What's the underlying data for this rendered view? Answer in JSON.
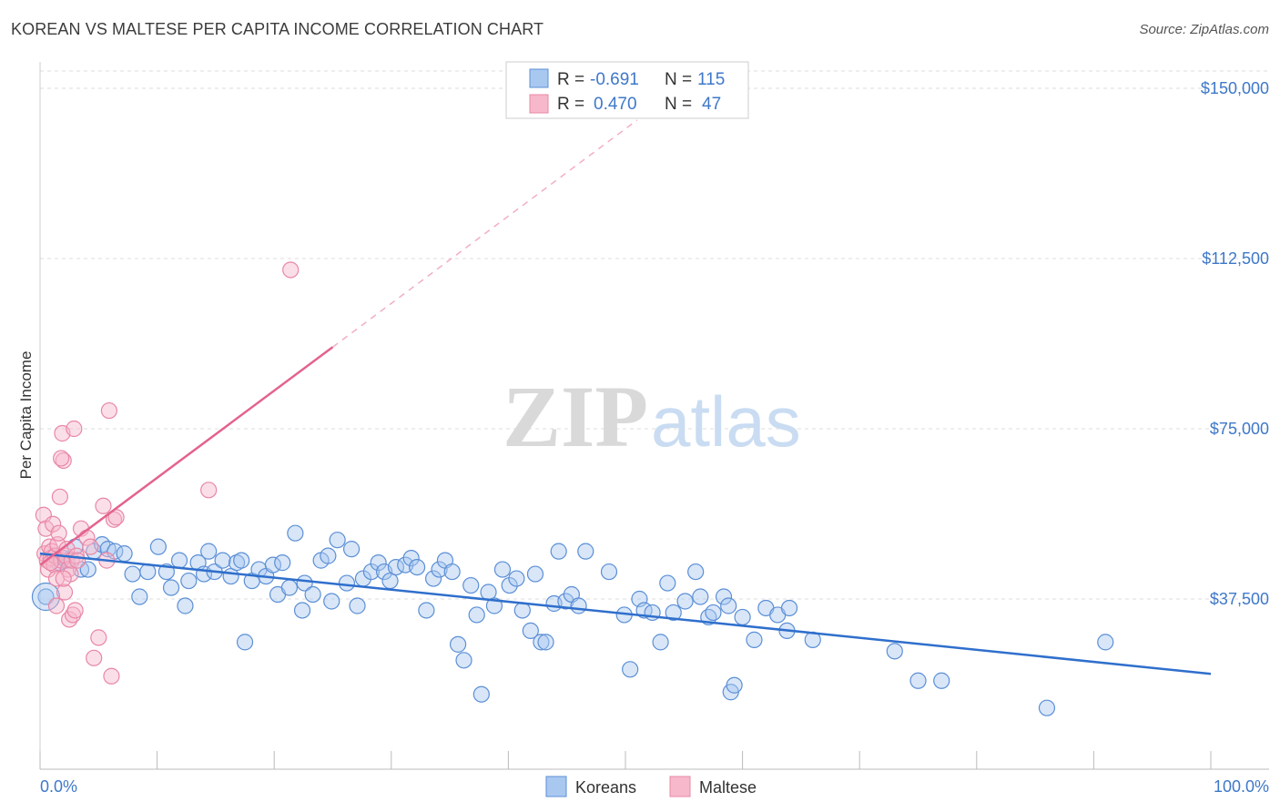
{
  "header": {
    "title": "KOREAN VS MALTESE PER CAPITA INCOME CORRELATION CHART",
    "source": "Source: ZipAtlas.com"
  },
  "watermark": {
    "zip": "ZIP",
    "atlas": "atlas"
  },
  "colors": {
    "blue_fill": "#a9c8f0",
    "blue_stroke": "#5b8fd6",
    "blue_line": "#2f6fcc",
    "pink_fill": "#f7b8cb",
    "pink_stroke": "#e987a6",
    "pink_line": "#e4628e",
    "tick_text": "#3e78c9",
    "grid": "#dddddd"
  },
  "legend": {
    "r_label": "R =",
    "n_label": "N =",
    "rows": [
      {
        "r": "-0.691",
        "n": "115"
      },
      {
        "r": "0.470",
        "n": "47"
      }
    ]
  },
  "chart_data": {
    "type": "scatter",
    "title": "KOREAN VS MALTESE PER CAPITA INCOME CORRELATION CHART",
    "xlabel": "",
    "ylabel": "Per Capita Income",
    "xlim": [
      0,
      100
    ],
    "ylim": [
      0,
      155000
    ],
    "x_tick_labels": [
      "0.0%",
      "100.0%"
    ],
    "y_ticks": [
      37500,
      75000,
      112500,
      150000
    ],
    "y_tick_labels": [
      "$37,500",
      "$75,000",
      "$112,500",
      "$150,000"
    ],
    "grid": true,
    "legend_position": "top-center",
    "series": [
      {
        "name": "Koreans",
        "color": "#a9c8f0",
        "r": -0.691,
        "n": 115,
        "trend": {
          "x": [
            0,
            100
          ],
          "y": [
            47500,
            21000
          ],
          "style": "solid"
        },
        "points": [
          [
            0.5,
            38000
          ],
          [
            1.2,
            47000
          ],
          [
            1.6,
            45500
          ],
          [
            2.0,
            46500
          ],
          [
            2.3,
            46000
          ],
          [
            3.0,
            49000
          ],
          [
            3.5,
            44000
          ],
          [
            4.1,
            44000
          ],
          [
            4.6,
            48000
          ],
          [
            5.3,
            49500
          ],
          [
            5.8,
            48500
          ],
          [
            6.4,
            48000
          ],
          [
            7.2,
            47500
          ],
          [
            7.9,
            43000
          ],
          [
            8.5,
            38000
          ],
          [
            9.2,
            43500
          ],
          [
            10.1,
            49000
          ],
          [
            10.8,
            43500
          ],
          [
            11.2,
            40000
          ],
          [
            11.9,
            46000
          ],
          [
            12.4,
            36000
          ],
          [
            12.7,
            41500
          ],
          [
            13.5,
            45500
          ],
          [
            14.0,
            43000
          ],
          [
            14.4,
            48000
          ],
          [
            14.9,
            43500
          ],
          [
            15.6,
            46000
          ],
          [
            16.3,
            42500
          ],
          [
            16.8,
            45500
          ],
          [
            17.2,
            46000
          ],
          [
            17.5,
            28000
          ],
          [
            18.1,
            41500
          ],
          [
            18.7,
            44000
          ],
          [
            19.3,
            42500
          ],
          [
            19.9,
            45000
          ],
          [
            20.3,
            38500
          ],
          [
            20.7,
            45500
          ],
          [
            21.3,
            40000
          ],
          [
            21.8,
            52000
          ],
          [
            22.4,
            35000
          ],
          [
            22.6,
            41000
          ],
          [
            23.3,
            38500
          ],
          [
            24.0,
            46000
          ],
          [
            24.6,
            47000
          ],
          [
            24.9,
            37000
          ],
          [
            25.4,
            50500
          ],
          [
            26.2,
            41000
          ],
          [
            26.6,
            48500
          ],
          [
            27.1,
            36000
          ],
          [
            27.6,
            42000
          ],
          [
            28.3,
            43500
          ],
          [
            28.9,
            45500
          ],
          [
            29.4,
            43500
          ],
          [
            29.9,
            41500
          ],
          [
            30.4,
            44500
          ],
          [
            31.2,
            45000
          ],
          [
            31.7,
            46500
          ],
          [
            32.2,
            44500
          ],
          [
            33.0,
            35000
          ],
          [
            33.6,
            42000
          ],
          [
            34.1,
            44000
          ],
          [
            34.6,
            46000
          ],
          [
            35.2,
            43500
          ],
          [
            35.7,
            27500
          ],
          [
            36.2,
            24000
          ],
          [
            36.8,
            40500
          ],
          [
            37.3,
            34000
          ],
          [
            37.7,
            16500
          ],
          [
            38.3,
            39000
          ],
          [
            38.8,
            36000
          ],
          [
            39.5,
            44000
          ],
          [
            40.1,
            40500
          ],
          [
            40.7,
            42000
          ],
          [
            41.2,
            35000
          ],
          [
            41.9,
            30500
          ],
          [
            42.3,
            43000
          ],
          [
            42.8,
            28000
          ],
          [
            43.2,
            28000
          ],
          [
            43.9,
            36500
          ],
          [
            44.3,
            48000
          ],
          [
            44.9,
            37000
          ],
          [
            45.4,
            38500
          ],
          [
            46.0,
            36000
          ],
          [
            46.6,
            48000
          ],
          [
            48.6,
            43500
          ],
          [
            49.9,
            34000
          ],
          [
            50.4,
            22000
          ],
          [
            51.2,
            37500
          ],
          [
            51.6,
            35000
          ],
          [
            52.3,
            34500
          ],
          [
            53.0,
            28000
          ],
          [
            53.6,
            41000
          ],
          [
            54.1,
            34500
          ],
          [
            55.1,
            37000
          ],
          [
            56.0,
            43500
          ],
          [
            56.4,
            38000
          ],
          [
            57.1,
            33500
          ],
          [
            57.5,
            34500
          ],
          [
            58.4,
            38000
          ],
          [
            58.8,
            36000
          ],
          [
            59.0,
            17000
          ],
          [
            59.3,
            18500
          ],
          [
            60.0,
            33500
          ],
          [
            61.0,
            28500
          ],
          [
            62.0,
            35500
          ],
          [
            63.0,
            34000
          ],
          [
            63.8,
            30500
          ],
          [
            64.0,
            35500
          ],
          [
            66.0,
            28500
          ],
          [
            73.0,
            26000
          ],
          [
            75.0,
            19500
          ],
          [
            77.0,
            19500
          ],
          [
            86.0,
            13500
          ],
          [
            91.0,
            28000
          ]
        ]
      },
      {
        "name": "Maltese",
        "color": "#f7b8cb",
        "r": 0.47,
        "n": 47,
        "trend": {
          "x": [
            0,
            25
          ],
          "y": [
            45000,
            93000
          ],
          "style": "solid",
          "extended_to": [
            51,
            143000
          ],
          "extended_style": "dashed"
        },
        "points": [
          [
            0.3,
            56000
          ],
          [
            0.4,
            47500
          ],
          [
            0.5,
            53000
          ],
          [
            0.6,
            46000
          ],
          [
            0.7,
            44000
          ],
          [
            0.8,
            49000
          ],
          [
            0.9,
            46500
          ],
          [
            1.0,
            48000
          ],
          [
            1.1,
            54000
          ],
          [
            1.2,
            45000
          ],
          [
            1.3,
            47000
          ],
          [
            1.4,
            42000
          ],
          [
            1.5,
            49500
          ],
          [
            1.6,
            52000
          ],
          [
            1.7,
            60000
          ],
          [
            1.8,
            46000
          ],
          [
            1.9,
            74000
          ],
          [
            2.0,
            68000
          ],
          [
            2.1,
            39000
          ],
          [
            2.2,
            47000
          ],
          [
            2.3,
            48500
          ],
          [
            2.4,
            44000
          ],
          [
            2.5,
            33000
          ],
          [
            2.6,
            43000
          ],
          [
            2.7,
            46000
          ],
          [
            2.8,
            34000
          ],
          [
            2.9,
            75000
          ],
          [
            3.0,
            35000
          ],
          [
            3.1,
            47000
          ],
          [
            3.2,
            46000
          ],
          [
            3.5,
            53000
          ],
          [
            4.0,
            51000
          ],
          [
            4.3,
            49000
          ],
          [
            4.6,
            24500
          ],
          [
            5.0,
            29000
          ],
          [
            5.4,
            58000
          ],
          [
            5.7,
            46000
          ],
          [
            5.9,
            79000
          ],
          [
            6.1,
            20500
          ],
          [
            6.3,
            55000
          ],
          [
            6.5,
            55500
          ],
          [
            14.4,
            61500
          ],
          [
            21.4,
            110000
          ],
          [
            1.8,
            68500
          ],
          [
            0.9,
            45500
          ],
          [
            1.4,
            36000
          ],
          [
            2.0,
            42000
          ]
        ]
      }
    ]
  },
  "bottom_legend": [
    {
      "label": "Koreans"
    },
    {
      "label": "Maltese"
    }
  ]
}
